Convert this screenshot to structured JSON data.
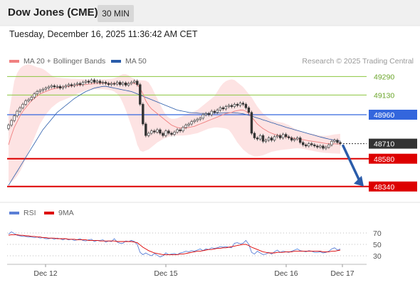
{
  "header": {
    "title": "Dow Jones (CME)",
    "timeframe": "30 MIN"
  },
  "datetime": "Tuesday, December 16, 2025 11:36:42 AM CET",
  "legend": {
    "items": [
      {
        "label": "MA 20 + Bollinger Bands",
        "color": "#f08080"
      },
      {
        "label": "MA 50",
        "color": "#2a5caa"
      }
    ],
    "credit": "Research © 2025 Trading Central"
  },
  "rsi_legend": {
    "items": [
      {
        "label": "RSI",
        "color": "#5b7fd6"
      },
      {
        "label": "9MA",
        "color": "#dd0000"
      }
    ]
  },
  "chart_data": {
    "type": "candlestick",
    "price_levels": [
      {
        "value": 49290,
        "label": "49290",
        "kind": "resistance",
        "color": "#8cc63f"
      },
      {
        "value": 49130,
        "label": "49130",
        "kind": "resistance",
        "color": "#8cc63f"
      },
      {
        "value": 48960,
        "label": "48960",
        "kind": "pivot",
        "color": "#3366dd"
      },
      {
        "value": 48710,
        "label": "48710",
        "kind": "last",
        "color": "#333333"
      },
      {
        "value": 48580,
        "label": "48580",
        "kind": "support",
        "color": "#dd0000"
      },
      {
        "value": 48340,
        "label": "48340",
        "kind": "support",
        "color": "#dd0000"
      }
    ],
    "x_ticks": [
      "Dec 12",
      "Dec 15",
      "Dec 16",
      "Dec 17"
    ],
    "rsi_ticks": [
      70,
      50,
      30
    ],
    "close": [
      48870,
      48910,
      48950,
      48990,
      49020,
      49050,
      49080,
      49090,
      49110,
      49140,
      49160,
      49170,
      49180,
      49190,
      49200,
      49210,
      49200,
      49205,
      49190,
      49200,
      49210,
      49220,
      49210,
      49220,
      49230,
      49220,
      49240,
      49250,
      49240,
      49260,
      49240,
      49250,
      49235,
      49240,
      49230,
      49220,
      49230,
      49225,
      49240,
      49220,
      49235,
      49215,
      49230,
      49240,
      49250,
      49220,
      49050,
      48880,
      48780,
      48800,
      48820,
      48810,
      48830,
      48800,
      48780,
      48820,
      48800,
      48790,
      48810,
      48830,
      48820,
      48850,
      48870,
      48880,
      48900,
      48910,
      48920,
      48930,
      48960,
      48970,
      48960,
      48990,
      48980,
      49000,
      49020,
      49010,
      49030,
      49040,
      49030,
      49050,
      49040,
      49060,
      49050,
      49020,
      48980,
      48800,
      48760,
      48750,
      48780,
      48730,
      48740,
      48760,
      48740,
      48770,
      48780,
      48760,
      48790,
      48770,
      48760,
      48740,
      48750,
      48760,
      48720,
      48700,
      48690,
      48710,
      48700,
      48690,
      48680,
      48690,
      48670,
      48680,
      48700,
      48730,
      48740,
      48720,
      48710
    ],
    "ma20": [
      48700,
      48780,
      48850,
      48900,
      48950,
      48990,
      49020,
      49050,
      49080,
      49100,
      49120,
      49140,
      49150,
      49160,
      49170,
      49180,
      49185,
      49190,
      49195,
      49200,
      49205,
      49205,
      49210,
      49210,
      49215,
      49215,
      49220,
      49220,
      49225,
      49225,
      49230,
      49230,
      49230,
      49232,
      49232,
      49230,
      49230,
      49230,
      49230,
      49230,
      49228,
      49228,
      49230,
      49230,
      49232,
      49220,
      49190,
      49140,
      49080,
      49040,
      49010,
      48990,
      48970,
      48950,
      48930,
      48910,
      48890,
      48870,
      48860,
      48850,
      48845,
      48845,
      48845,
      48850,
      48855,
      48860,
      48870,
      48880,
      48890,
      48900,
      48910,
      48920,
      48930,
      48940,
      48950,
      48960,
      48970,
      48975,
      48980,
      48990,
      48995,
      49000,
      49000,
      48990,
      48970,
      48940,
      48910,
      48880,
      48860,
      48840,
      48825,
      48810,
      48800,
      48790,
      48785,
      48780,
      48775,
      48770,
      48765,
      48760,
      48755,
      48752,
      48748,
      48745,
      48740,
      48735,
      48732,
      48728,
      48724,
      48720,
      48716,
      48712,
      48710,
      48708,
      48708,
      48707,
      48706
    ],
    "bb_upper": [
      48950,
      49100,
      49250,
      49320,
      49360,
      49380,
      49390,
      49395,
      49390,
      49380,
      49370,
      49365,
      49355,
      49340,
      49320,
      49300,
      49285,
      49280,
      49278,
      49276,
      49274,
      49272,
      49270,
      49270,
      49268,
      49268,
      49268,
      49266,
      49266,
      49266,
      49265,
      49265,
      49265,
      49266,
      49266,
      49268,
      49270,
      49275,
      49285,
      49300,
      49310,
      49310,
      49300,
      49280,
      49270,
      49260,
      49258,
      49256,
      49254,
      49240,
      49200,
      49150,
      49100,
      49050,
      49000,
      48960,
      48935,
      48925,
      48925,
      48930,
      48940,
      48950,
      48960,
      48970,
      48980,
      48990,
      49000,
      49020,
      49040,
      49060,
      49080,
      49100,
      49120,
      49160,
      49200,
      49230,
      49250,
      49260,
      49265,
      49260,
      49240,
      49220,
      49200,
      49170,
      49140,
      49110,
      49070,
      49030,
      49000,
      48970,
      48950,
      48930,
      48915,
      48905,
      48900,
      48895,
      48890,
      48880,
      48870,
      48855,
      48840,
      48830,
      48820,
      48812,
      48805,
      48800,
      48795,
      48790,
      48785,
      48780,
      48778,
      48778,
      48780,
      48785,
      48790,
      48792,
      48795
    ],
    "bb_lower": [
      48380,
      48380,
      48400,
      48430,
      48470,
      48520,
      48580,
      48640,
      48700,
      48760,
      48820,
      48880,
      48920,
      48960,
      48990,
      49020,
      49040,
      49060,
      49075,
      49085,
      49095,
      49105,
      49115,
      49125,
      49140,
      49150,
      49160,
      49170,
      49175,
      49178,
      49180,
      49180,
      49180,
      49180,
      49178,
      49175,
      49170,
      49160,
      49140,
      49110,
      49060,
      49000,
      48930,
      48860,
      48790,
      48700,
      48650,
      48640,
      48650,
      48660,
      48680,
      48700,
      48720,
      48735,
      48750,
      48760,
      48770,
      48775,
      48778,
      48780,
      48780,
      48780,
      48782,
      48785,
      48790,
      48795,
      48800,
      48810,
      48820,
      48830,
      48840,
      48845,
      48850,
      48850,
      48848,
      48845,
      48840,
      48830,
      48800,
      48760,
      48720,
      48690,
      48660,
      48640,
      48620,
      48610,
      48600,
      48600,
      48605,
      48610,
      48620,
      48630,
      48640,
      48645,
      48650,
      48655,
      48658,
      48660,
      48662,
      48665,
      48668,
      48670,
      48668,
      48665,
      48660,
      48655,
      48650,
      48645,
      48640,
      48635,
      48632,
      48630,
      48628,
      48626,
      48625,
      48624,
      48623
    ],
    "ma50": [
      48350,
      48390,
      48430,
      48470,
      48510,
      48550,
      48590,
      48630,
      48670,
      48710,
      48750,
      48790,
      48830,
      48860,
      48890,
      48920,
      48950,
      48980,
      49000,
      49020,
      49040,
      49060,
      49080,
      49100,
      49115,
      49130,
      49145,
      49160,
      49170,
      49180,
      49190,
      49195,
      49200,
      49205,
      49205,
      49200,
      49195,
      49190,
      49185,
      49180,
      49175,
      49170,
      49165,
      49160,
      49150,
      49140,
      49130,
      49120,
      49110,
      49100,
      49090,
      49080,
      49070,
      49060,
      49050,
      49040,
      49030,
      49020,
      49010,
      49000,
      48995,
      48990,
      48985,
      48980,
      48978,
      48976,
      48974,
      48972,
      48972,
      48972,
      48972,
      48972,
      48973,
      48974,
      48975,
      48976,
      48977,
      48978,
      48978,
      48977,
      48975,
      48972,
      48968,
      48962,
      48955,
      48948,
      48940,
      48932,
      48924,
      48916,
      48908,
      48900,
      48892,
      48884,
      48876,
      48868,
      48860,
      48852,
      48845,
      48838,
      48831,
      48824,
      48817,
      48810,
      48803,
      48796,
      48789,
      48782,
      48775,
      48768,
      48762,
      48756,
      48750,
      48745,
      48740,
      48736,
      48732
    ],
    "rsi": [
      68,
      72,
      69,
      66,
      65,
      64,
      64,
      63,
      63,
      62,
      63,
      61,
      62,
      60,
      60,
      61,
      59,
      61,
      60,
      58,
      60,
      58,
      59,
      57,
      58,
      60,
      57,
      56,
      58,
      59,
      55,
      57,
      57,
      58,
      54,
      56,
      55,
      60,
      54,
      52,
      52,
      56,
      55,
      57,
      55,
      50,
      36,
      32,
      35,
      32,
      30,
      34,
      31,
      28,
      30,
      35,
      32,
      33,
      34,
      32,
      35,
      36,
      38,
      37,
      39,
      38,
      40,
      42,
      39,
      42,
      41,
      44,
      43,
      44,
      46,
      45,
      46,
      45,
      44,
      52,
      53,
      51,
      52,
      57,
      50,
      36,
      33,
      38,
      35,
      32,
      33,
      36,
      33,
      37,
      40,
      36,
      38,
      37,
      36,
      38,
      40,
      42,
      39,
      38,
      37,
      39,
      38,
      36,
      36,
      37,
      35,
      36,
      38,
      42,
      44,
      40,
      42
    ],
    "rsi_ma": [
      66,
      67,
      67,
      67,
      66,
      66,
      65,
      65,
      64,
      64,
      63,
      63,
      62,
      62,
      61,
      61,
      61,
      60,
      60,
      60,
      60,
      59,
      59,
      59,
      58,
      58,
      58,
      58,
      57,
      57,
      57,
      57,
      56,
      56,
      56,
      56,
      56,
      56,
      55,
      55,
      55,
      55,
      55,
      55,
      54,
      53,
      49,
      45,
      42,
      39,
      37,
      35,
      34,
      33,
      32,
      32,
      32,
      32,
      32,
      32,
      33,
      33,
      34,
      35,
      36,
      37,
      38,
      38,
      39,
      40,
      41,
      41,
      42,
      43,
      43,
      44,
      44,
      45,
      46,
      47,
      48,
      49,
      50,
      50,
      48,
      45,
      43,
      41,
      39,
      37,
      36,
      35,
      35,
      35,
      36,
      36,
      36,
      37,
      37,
      37,
      38,
      38,
      38,
      38,
      38,
      38,
      38,
      38,
      38,
      38,
      37,
      37,
      37,
      38,
      38,
      39,
      40
    ]
  }
}
